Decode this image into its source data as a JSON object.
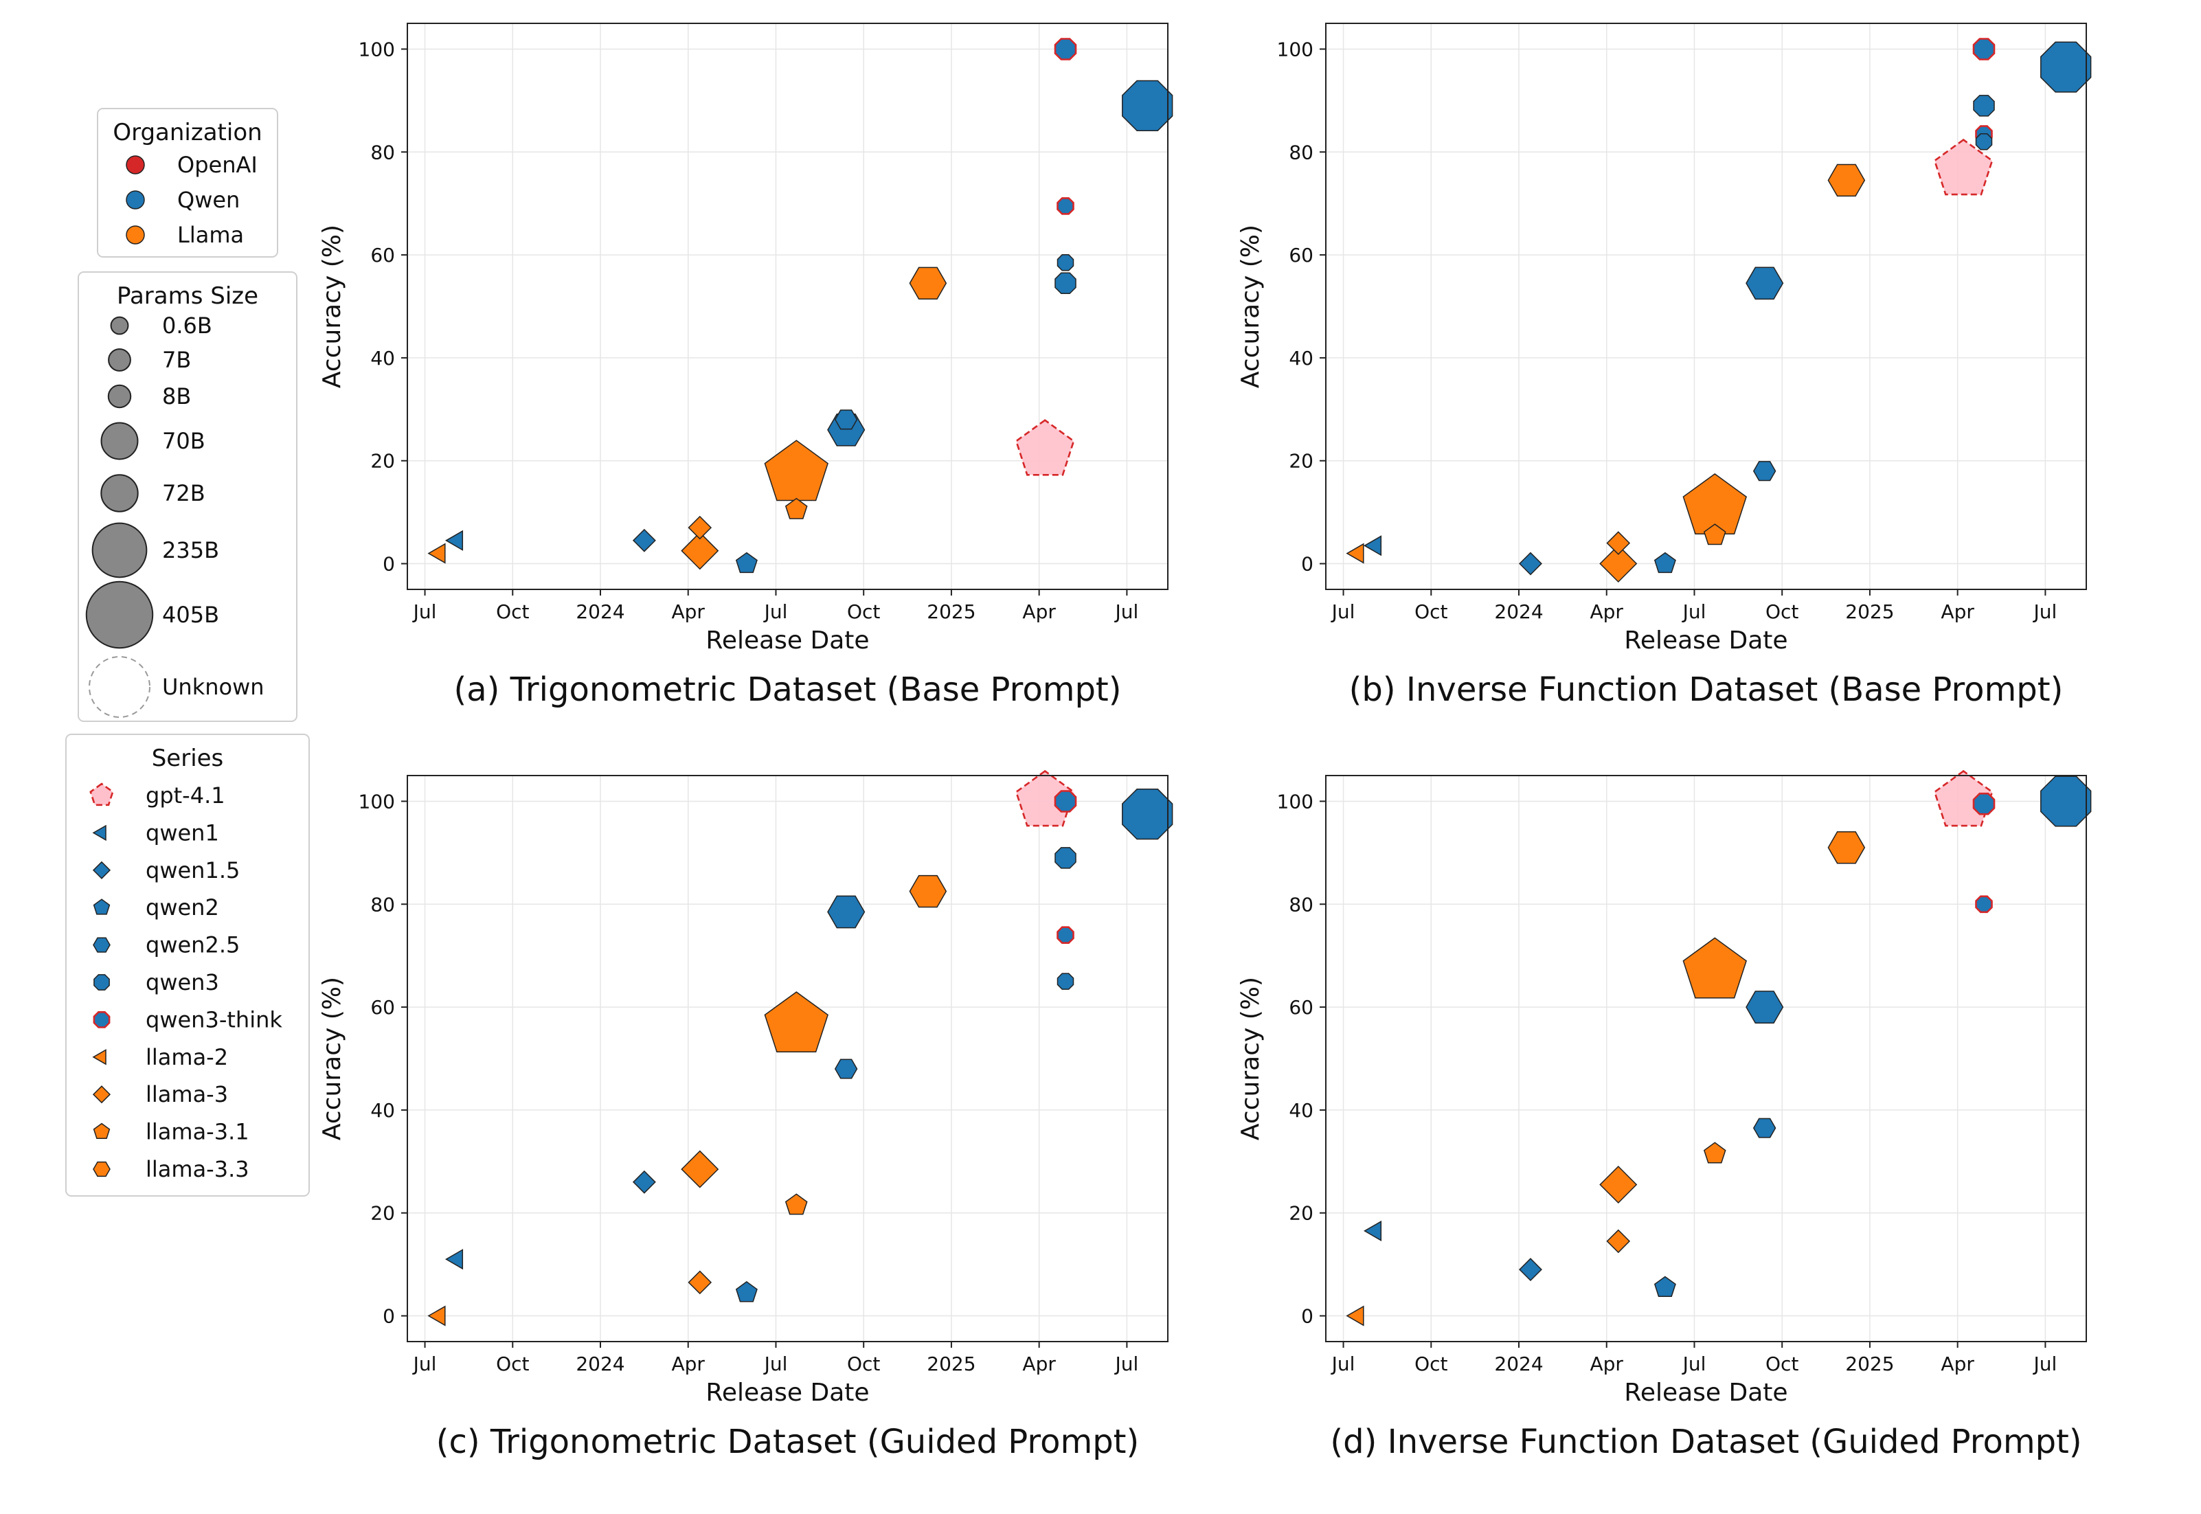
{
  "colors": {
    "OpenAI": "#d62728",
    "Qwen": "#1f77b4",
    "Llama": "#ff7f0e",
    "gpt_fill": "#ffc0cb",
    "size_marker": "#888888",
    "grid": "#e6e6e6"
  },
  "legend": {
    "organization": {
      "title": "Organization",
      "items": [
        {
          "label": "OpenAI",
          "color": "#d62728"
        },
        {
          "label": "Qwen",
          "color": "#1f77b4"
        },
        {
          "label": "Llama",
          "color": "#ff7f0e"
        }
      ]
    },
    "params": {
      "title": "Params Size",
      "items": [
        {
          "label": "0.6B",
          "params_b": 0.6
        },
        {
          "label": "7B",
          "params_b": 7
        },
        {
          "label": "8B",
          "params_b": 8
        },
        {
          "label": "70B",
          "params_b": 70
        },
        {
          "label": "72B",
          "params_b": 72
        },
        {
          "label": "235B",
          "params_b": 235
        },
        {
          "label": "405B",
          "params_b": 405
        },
        {
          "label": "Unknown",
          "params_b": null
        }
      ]
    },
    "series": {
      "title": "Series",
      "items": [
        {
          "label": "gpt-4.1",
          "marker": "pentagon",
          "color": "#ffc0cb",
          "edge": "#d62728",
          "dashed": true
        },
        {
          "label": "qwen1",
          "marker": "triangle-left",
          "color": "#1f77b4",
          "edge": "#222222",
          "dashed": false
        },
        {
          "label": "qwen1.5",
          "marker": "diamond",
          "color": "#1f77b4",
          "edge": "#222222",
          "dashed": false
        },
        {
          "label": "qwen2",
          "marker": "pentagon",
          "color": "#1f77b4",
          "edge": "#222222",
          "dashed": false
        },
        {
          "label": "qwen2.5",
          "marker": "hexagon",
          "color": "#1f77b4",
          "edge": "#222222",
          "dashed": false
        },
        {
          "label": "qwen3",
          "marker": "octagon",
          "color": "#1f77b4",
          "edge": "#222222",
          "dashed": false
        },
        {
          "label": "qwen3-think",
          "marker": "octagon",
          "color": "#1f77b4",
          "edge": "#d62728",
          "dashed": false
        },
        {
          "label": "llama-2",
          "marker": "triangle-left",
          "color": "#ff7f0e",
          "edge": "#222222",
          "dashed": false
        },
        {
          "label": "llama-3",
          "marker": "diamond",
          "color": "#ff7f0e",
          "edge": "#222222",
          "dashed": false
        },
        {
          "label": "llama-3.1",
          "marker": "pentagon",
          "color": "#ff7f0e",
          "edge": "#222222",
          "dashed": false
        },
        {
          "label": "llama-3.3",
          "marker": "hexagon",
          "color": "#ff7f0e",
          "edge": "#222222",
          "dashed": false
        }
      ]
    }
  },
  "chart_data": [
    {
      "type": "scatter",
      "caption": "(a) Trigonometric Dataset (Base Prompt)",
      "xlabel": "Release Date",
      "ylabel": "Accuracy (%)",
      "xlim": [
        0,
        26
      ],
      "ylim": [
        -5,
        105
      ],
      "xticks": [
        {
          "v": 0.6,
          "label": "Jul"
        },
        {
          "v": 3.6,
          "label": "Oct"
        },
        {
          "v": 6.6,
          "label": "2024"
        },
        {
          "v": 9.6,
          "label": "Apr"
        },
        {
          "v": 12.6,
          "label": "Jul"
        },
        {
          "v": 15.6,
          "label": "Oct"
        },
        {
          "v": 18.6,
          "label": "2025"
        },
        {
          "v": 21.6,
          "label": "Apr"
        },
        {
          "v": 24.6,
          "label": "Jul"
        }
      ],
      "yticks": [
        0,
        20,
        40,
        60,
        80,
        100
      ],
      "grid": true,
      "points": [
        {
          "series": "llama-2",
          "x": 1.1,
          "y": 2,
          "size": 7
        },
        {
          "series": "qwen1",
          "x": 1.7,
          "y": 4.5,
          "size": 7
        },
        {
          "series": "qwen1.5",
          "x": 8.1,
          "y": 4.5,
          "size": 7
        },
        {
          "series": "llama-3",
          "x": 10.0,
          "y": 7,
          "size": 8
        },
        {
          "series": "llama-3",
          "x": 10.0,
          "y": 2.5,
          "size": 70
        },
        {
          "series": "qwen2",
          "x": 11.6,
          "y": 0,
          "size": 7
        },
        {
          "series": "llama-3.1",
          "x": 13.3,
          "y": 17.5,
          "size": 405
        },
        {
          "series": "llama-3.1",
          "x": 13.3,
          "y": 10.5,
          "size": 8
        },
        {
          "series": "qwen2.5",
          "x": 15.0,
          "y": 28,
          "size": 7
        },
        {
          "series": "qwen2.5",
          "x": 15.0,
          "y": 26,
          "size": 72
        },
        {
          "series": "llama-3.3",
          "x": 17.8,
          "y": 54.5,
          "size": 70
        },
        {
          "series": "gpt-4.1",
          "x": 21.8,
          "y": 22,
          "size": null
        },
        {
          "series": "qwen3-think",
          "x": 22.5,
          "y": 100,
          "size": 8
        },
        {
          "series": "qwen3-think",
          "x": 22.5,
          "y": 69.5,
          "size": 0.6
        },
        {
          "series": "qwen3",
          "x": 22.5,
          "y": 58.5,
          "size": 0.6
        },
        {
          "series": "qwen3",
          "x": 22.5,
          "y": 54.5,
          "size": 8
        },
        {
          "series": "qwen3",
          "x": 25.3,
          "y": 89,
          "size": 235
        }
      ]
    },
    {
      "type": "scatter",
      "caption": "(b) Inverse Function Dataset (Base Prompt)",
      "xlabel": "Release Date",
      "ylabel": "Accuracy (%)",
      "xlim": [
        0,
        26
      ],
      "ylim": [
        -5,
        105
      ],
      "xticks": [
        {
          "v": 0.6,
          "label": "Jul"
        },
        {
          "v": 3.6,
          "label": "Oct"
        },
        {
          "v": 6.6,
          "label": "2024"
        },
        {
          "v": 9.6,
          "label": "Apr"
        },
        {
          "v": 12.6,
          "label": "Jul"
        },
        {
          "v": 15.6,
          "label": "Oct"
        },
        {
          "v": 18.6,
          "label": "2025"
        },
        {
          "v": 21.6,
          "label": "Apr"
        },
        {
          "v": 24.6,
          "label": "Jul"
        }
      ],
      "yticks": [
        0,
        20,
        40,
        60,
        80,
        100
      ],
      "grid": true,
      "points": [
        {
          "series": "llama-2",
          "x": 1.1,
          "y": 2,
          "size": 7
        },
        {
          "series": "qwen1",
          "x": 1.7,
          "y": 3.5,
          "size": 7
        },
        {
          "series": "qwen1.5",
          "x": 7.0,
          "y": 0,
          "size": 7
        },
        {
          "series": "llama-3",
          "x": 10.0,
          "y": 4,
          "size": 8
        },
        {
          "series": "llama-3",
          "x": 10.0,
          "y": 0,
          "size": 70
        },
        {
          "series": "qwen2",
          "x": 11.6,
          "y": 0,
          "size": 7
        },
        {
          "series": "llama-3.1",
          "x": 13.3,
          "y": 11,
          "size": 405
        },
        {
          "series": "llama-3.1",
          "x": 13.3,
          "y": 5.5,
          "size": 8
        },
        {
          "series": "qwen2.5",
          "x": 15.0,
          "y": 18,
          "size": 7
        },
        {
          "series": "qwen2.5",
          "x": 15.0,
          "y": 54.5,
          "size": 72
        },
        {
          "series": "llama-3.3",
          "x": 17.8,
          "y": 74.5,
          "size": 70
        },
        {
          "series": "gpt-4.1",
          "x": 21.8,
          "y": 76.5,
          "size": null
        },
        {
          "series": "qwen3-think",
          "x": 22.5,
          "y": 100,
          "size": 8
        },
        {
          "series": "qwen3-think",
          "x": 22.5,
          "y": 83.5,
          "size": 0.6
        },
        {
          "series": "qwen3",
          "x": 22.5,
          "y": 82,
          "size": 0.6
        },
        {
          "series": "qwen3",
          "x": 22.5,
          "y": 89,
          "size": 8
        },
        {
          "series": "qwen3",
          "x": 25.3,
          "y": 96.5,
          "size": 235
        }
      ]
    },
    {
      "type": "scatter",
      "caption": "(c) Trigonometric Dataset (Guided Prompt)",
      "xlabel": "Release Date",
      "ylabel": "Accuracy (%)",
      "xlim": [
        0,
        26
      ],
      "ylim": [
        -5,
        105
      ],
      "xticks": [
        {
          "v": 0.6,
          "label": "Jul"
        },
        {
          "v": 3.6,
          "label": "Oct"
        },
        {
          "v": 6.6,
          "label": "2024"
        },
        {
          "v": 9.6,
          "label": "Apr"
        },
        {
          "v": 12.6,
          "label": "Jul"
        },
        {
          "v": 15.6,
          "label": "Oct"
        },
        {
          "v": 18.6,
          "label": "2025"
        },
        {
          "v": 21.6,
          "label": "Apr"
        },
        {
          "v": 24.6,
          "label": "Jul"
        }
      ],
      "yticks": [
        0,
        20,
        40,
        60,
        80,
        100
      ],
      "grid": true,
      "points": [
        {
          "series": "llama-2",
          "x": 1.1,
          "y": 0,
          "size": 7
        },
        {
          "series": "qwen1",
          "x": 1.7,
          "y": 11,
          "size": 7
        },
        {
          "series": "qwen1.5",
          "x": 8.1,
          "y": 26,
          "size": 7
        },
        {
          "series": "llama-3",
          "x": 10.0,
          "y": 6.5,
          "size": 8
        },
        {
          "series": "llama-3",
          "x": 10.0,
          "y": 28.5,
          "size": 70
        },
        {
          "series": "qwen2",
          "x": 11.6,
          "y": 4.5,
          "size": 7
        },
        {
          "series": "llama-3.1",
          "x": 13.3,
          "y": 56.5,
          "size": 405
        },
        {
          "series": "llama-3.1",
          "x": 13.3,
          "y": 21.5,
          "size": 8
        },
        {
          "series": "qwen2.5",
          "x": 15.0,
          "y": 48,
          "size": 7
        },
        {
          "series": "qwen2.5",
          "x": 15.0,
          "y": 78.5,
          "size": 72
        },
        {
          "series": "llama-3.3",
          "x": 17.8,
          "y": 82.5,
          "size": 70
        },
        {
          "series": "gpt-4.1",
          "x": 21.8,
          "y": 100,
          "size": null
        },
        {
          "series": "qwen3-think",
          "x": 22.5,
          "y": 100,
          "size": 8
        },
        {
          "series": "qwen3-think",
          "x": 22.5,
          "y": 74,
          "size": 0.6
        },
        {
          "series": "qwen3",
          "x": 22.5,
          "y": 65,
          "size": 0.6
        },
        {
          "series": "qwen3",
          "x": 22.5,
          "y": 89,
          "size": 8
        },
        {
          "series": "qwen3",
          "x": 25.3,
          "y": 97.5,
          "size": 235
        }
      ]
    },
    {
      "type": "scatter",
      "caption": "(d) Inverse Function Dataset (Guided Prompt)",
      "xlabel": "Release Date",
      "ylabel": "Accuracy (%)",
      "xlim": [
        0,
        26
      ],
      "ylim": [
        -5,
        105
      ],
      "xticks": [
        {
          "v": 0.6,
          "label": "Jul"
        },
        {
          "v": 3.6,
          "label": "Oct"
        },
        {
          "v": 6.6,
          "label": "2024"
        },
        {
          "v": 9.6,
          "label": "Apr"
        },
        {
          "v": 12.6,
          "label": "Jul"
        },
        {
          "v": 15.6,
          "label": "Oct"
        },
        {
          "v": 18.6,
          "label": "2025"
        },
        {
          "v": 21.6,
          "label": "Apr"
        },
        {
          "v": 24.6,
          "label": "Jul"
        }
      ],
      "yticks": [
        0,
        20,
        40,
        60,
        80,
        100
      ],
      "grid": true,
      "points": [
        {
          "series": "llama-2",
          "x": 1.1,
          "y": 0,
          "size": 7
        },
        {
          "series": "qwen1",
          "x": 1.7,
          "y": 16.5,
          "size": 7
        },
        {
          "series": "qwen1.5",
          "x": 7.0,
          "y": 9,
          "size": 7
        },
        {
          "series": "llama-3",
          "x": 10.0,
          "y": 14.5,
          "size": 8
        },
        {
          "series": "llama-3",
          "x": 10.0,
          "y": 25.5,
          "size": 70
        },
        {
          "series": "qwen2",
          "x": 11.6,
          "y": 5.5,
          "size": 7
        },
        {
          "series": "llama-3.1",
          "x": 13.3,
          "y": 67,
          "size": 405
        },
        {
          "series": "llama-3.1",
          "x": 13.3,
          "y": 31.5,
          "size": 8
        },
        {
          "series": "qwen2.5",
          "x": 15.0,
          "y": 36.5,
          "size": 7
        },
        {
          "series": "qwen2.5",
          "x": 15.0,
          "y": 60,
          "size": 72
        },
        {
          "series": "llama-3.3",
          "x": 17.8,
          "y": 91,
          "size": 70
        },
        {
          "series": "gpt-4.1",
          "x": 21.8,
          "y": 100,
          "size": null
        },
        {
          "series": "qwen3-think",
          "x": 22.5,
          "y": 99.5,
          "size": 8
        },
        {
          "series": "qwen3-think",
          "x": 22.5,
          "y": 80,
          "size": 0.6
        },
        {
          "series": "qwen3",
          "x": 25.3,
          "y": 100,
          "size": 235
        }
      ]
    }
  ]
}
